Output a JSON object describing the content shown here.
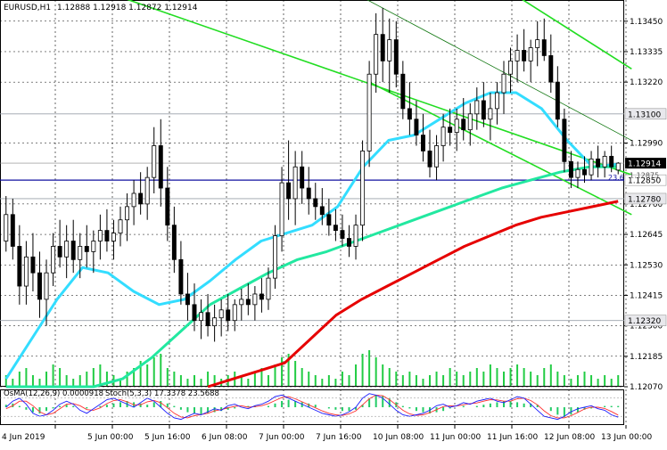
{
  "header": {
    "symbol": "EURUSD,H1",
    "quote": "1.12888 1.12918 1.12872 1.12914"
  },
  "osc_header": {
    "osma": "OsMA(12,26,9) 0.0000918",
    "stoch": "Stoch(5,3,3) 17.3378 23.5688"
  },
  "colors": {
    "background": "#ffffff",
    "grid": "#000000",
    "candle": "#000000",
    "ma_cyan": "#33ddff",
    "ma_green": "#22e8a0",
    "ma_red": "#e60000",
    "trend": "#22dd22",
    "level": "#9aa0aa",
    "blue_line": "#1010a0",
    "volume": "#22cc44",
    "osma": "#22cc66",
    "stoch_main": "#1a1aff",
    "stoch_signal": "#ff3030",
    "price_label_bg": "#000000"
  },
  "chart_data": {
    "type": "candlestick",
    "symbol": "EURUSD",
    "timeframe": "H1",
    "x_labels": [
      "4 Jun 2019",
      "5 Jun 00:00",
      "5 Jun 16:00",
      "6 Jun 08:00",
      "7 Jun 00:00",
      "7 Jun 16:00",
      "10 Jun 08:00",
      "11 Jun 00:00",
      "11 Jun 16:00",
      "12 Jun 08:00",
      "13 Jun 00:00"
    ],
    "y_ticks": [
      "1.13450",
      "1.13335",
      "1.13220",
      "1.12990",
      "1.12760",
      "1.12645",
      "1.12530",
      "1.12415",
      "1.12300",
      "1.12185",
      "1.12070"
    ],
    "ylim": [
      1.1207,
      1.1353
    ],
    "levels": [
      {
        "label": "1.13100",
        "value": 1.131
      },
      {
        "label": "1.12850",
        "value": 1.1285
      },
      {
        "label": "1.12780",
        "value": 1.1278
      },
      {
        "label": "1.12320",
        "value": 1.1232
      }
    ],
    "current_price": {
      "label": "1.12914",
      "value": 1.12914
    },
    "overlap_label": "1.12875",
    "annotation": "23.6",
    "ohlc": [
      [
        1.1262,
        1.1279,
        1.1258,
        1.1272
      ],
      [
        1.1272,
        1.1278,
        1.1255,
        1.126
      ],
      [
        1.126,
        1.1268,
        1.1238,
        1.1245
      ],
      [
        1.1245,
        1.1262,
        1.1238,
        1.1256
      ],
      [
        1.1256,
        1.1265,
        1.1243,
        1.125
      ],
      [
        1.125,
        1.1258,
        1.1233,
        1.124
      ],
      [
        1.124,
        1.1255,
        1.123,
        1.125
      ],
      [
        1.125,
        1.1265,
        1.1245,
        1.126
      ],
      [
        1.126,
        1.127,
        1.1252,
        1.1256
      ],
      [
        1.1256,
        1.1268,
        1.1248,
        1.1262
      ],
      [
        1.1262,
        1.127,
        1.125,
        1.1255
      ],
      [
        1.1255,
        1.1265,
        1.1248,
        1.126
      ],
      [
        1.126,
        1.1268,
        1.1252,
        1.1258
      ],
      [
        1.1258,
        1.1266,
        1.125,
        1.1262
      ],
      [
        1.1262,
        1.1272,
        1.1255,
        1.1266
      ],
      [
        1.1266,
        1.1274,
        1.1258,
        1.1262
      ],
      [
        1.1262,
        1.127,
        1.1255,
        1.1265
      ],
      [
        1.1265,
        1.1275,
        1.126,
        1.127
      ],
      [
        1.127,
        1.128,
        1.1262,
        1.1275
      ],
      [
        1.1275,
        1.1285,
        1.1268,
        1.128
      ],
      [
        1.128,
        1.1288,
        1.1272,
        1.1276
      ],
      [
        1.1276,
        1.129,
        1.127,
        1.1286
      ],
      [
        1.1286,
        1.1305,
        1.128,
        1.1298
      ],
      [
        1.1298,
        1.1308,
        1.1275,
        1.1282
      ],
      [
        1.1282,
        1.129,
        1.1262,
        1.1268
      ],
      [
        1.1268,
        1.1275,
        1.125,
        1.1255
      ],
      [
        1.1255,
        1.1262,
        1.1238,
        1.1242
      ],
      [
        1.1242,
        1.125,
        1.1232,
        1.1238
      ],
      [
        1.1238,
        1.1246,
        1.1228,
        1.1232
      ],
      [
        1.1232,
        1.124,
        1.1225,
        1.1235
      ],
      [
        1.1235,
        1.1242,
        1.1226,
        1.123
      ],
      [
        1.123,
        1.1238,
        1.1224,
        1.1233
      ],
      [
        1.1233,
        1.124,
        1.1226,
        1.1236
      ],
      [
        1.1236,
        1.1242,
        1.1228,
        1.1232
      ],
      [
        1.1232,
        1.124,
        1.1228,
        1.1238
      ],
      [
        1.1238,
        1.1244,
        1.1232,
        1.124
      ],
      [
        1.124,
        1.1246,
        1.1234,
        1.1238
      ],
      [
        1.1238,
        1.1245,
        1.1232,
        1.1242
      ],
      [
        1.1242,
        1.1248,
        1.1235,
        1.124
      ],
      [
        1.124,
        1.1252,
        1.1236,
        1.1248
      ],
      [
        1.1248,
        1.1268,
        1.1244,
        1.1264
      ],
      [
        1.1264,
        1.129,
        1.1258,
        1.1284
      ],
      [
        1.1284,
        1.13,
        1.127,
        1.1278
      ],
      [
        1.1278,
        1.1296,
        1.1268,
        1.129
      ],
      [
        1.129,
        1.1296,
        1.1276,
        1.1282
      ],
      [
        1.1282,
        1.129,
        1.1272,
        1.1278
      ],
      [
        1.1278,
        1.1284,
        1.127,
        1.1275
      ],
      [
        1.1275,
        1.1282,
        1.1268,
        1.1272
      ],
      [
        1.1272,
        1.1278,
        1.1264,
        1.1268
      ],
      [
        1.1268,
        1.1274,
        1.1262,
        1.1266
      ],
      [
        1.1266,
        1.1272,
        1.126,
        1.1263
      ],
      [
        1.1263,
        1.1268,
        1.1256,
        1.126
      ],
      [
        1.126,
        1.1272,
        1.1255,
        1.1268
      ],
      [
        1.1268,
        1.13,
        1.1262,
        1.1296
      ],
      [
        1.1296,
        1.133,
        1.129,
        1.1325
      ],
      [
        1.1325,
        1.1348,
        1.1318,
        1.134
      ],
      [
        1.134,
        1.135,
        1.1322,
        1.133
      ],
      [
        1.133,
        1.1346,
        1.1318,
        1.1338
      ],
      [
        1.1338,
        1.1345,
        1.132,
        1.1325
      ],
      [
        1.1325,
        1.133,
        1.1308,
        1.1312
      ],
      [
        1.1312,
        1.1322,
        1.1302,
        1.1308
      ],
      [
        1.1308,
        1.1315,
        1.1298,
        1.1302
      ],
      [
        1.1302,
        1.131,
        1.1292,
        1.1296
      ],
      [
        1.1296,
        1.1304,
        1.1286,
        1.129
      ],
      [
        1.129,
        1.1302,
        1.1285,
        1.1298
      ],
      [
        1.1298,
        1.131,
        1.1292,
        1.1305
      ],
      [
        1.1305,
        1.1312,
        1.1298,
        1.1303
      ],
      [
        1.1303,
        1.1312,
        1.1296,
        1.1308
      ],
      [
        1.1308,
        1.1316,
        1.13,
        1.1304
      ],
      [
        1.1304,
        1.1314,
        1.1298,
        1.131
      ],
      [
        1.131,
        1.132,
        1.1304,
        1.1315
      ],
      [
        1.1315,
        1.1322,
        1.1305,
        1.1308
      ],
      [
        1.1308,
        1.1318,
        1.13,
        1.1312
      ],
      [
        1.1312,
        1.1322,
        1.1306,
        1.1318
      ],
      [
        1.1318,
        1.133,
        1.131,
        1.1325
      ],
      [
        1.1325,
        1.1335,
        1.1318,
        1.133
      ],
      [
        1.133,
        1.134,
        1.1322,
        1.1334
      ],
      [
        1.1334,
        1.1342,
        1.1326,
        1.133
      ],
      [
        1.133,
        1.1338,
        1.1322,
        1.1335
      ],
      [
        1.1335,
        1.1345,
        1.1328,
        1.1338
      ],
      [
        1.1338,
        1.1346,
        1.133,
        1.1332
      ],
      [
        1.1332,
        1.134,
        1.1318,
        1.1322
      ],
      [
        1.1322,
        1.1328,
        1.1305,
        1.1308
      ],
      [
        1.1308,
        1.1312,
        1.1288,
        1.1292
      ],
      [
        1.1292,
        1.1296,
        1.1282,
        1.1286
      ],
      [
        1.1286,
        1.1292,
        1.1282,
        1.1289
      ],
      [
        1.1289,
        1.1294,
        1.1284,
        1.1287
      ],
      [
        1.1287,
        1.1296,
        1.1285,
        1.1293
      ],
      [
        1.1293,
        1.1298,
        1.1286,
        1.129
      ],
      [
        1.129,
        1.1296,
        1.1286,
        1.1294
      ],
      [
        1.1294,
        1.1298,
        1.1288,
        1.129
      ],
      [
        1.12888,
        1.12918,
        1.12872,
        1.12914
      ]
    ],
    "indicators": [
      {
        "name": "ma_cyan",
        "values": [
          1.121,
          1.1225,
          1.124,
          1.1252,
          1.125,
          1.1243,
          1.1238,
          1.124,
          1.1247,
          1.1255,
          1.1262,
          1.1265,
          1.1268,
          1.1275,
          1.129,
          1.13,
          1.1302,
          1.1308,
          1.1314,
          1.1318,
          1.1318,
          1.1312,
          1.13,
          1.129,
          1.1291
        ]
      },
      {
        "name": "ma_green",
        "values": [
          1.12,
          1.1202,
          1.1203,
          1.1205,
          1.121,
          1.1218,
          1.1228,
          1.1238,
          1.1244,
          1.125,
          1.1255,
          1.1258,
          1.1262,
          1.1266,
          1.127,
          1.1274,
          1.1278,
          1.1282,
          1.1285,
          1.1288,
          1.129,
          1.129
        ]
      },
      {
        "name": "ma_red",
        "values": [
          1.1207,
          1.121,
          1.1213,
          1.1216,
          1.1225,
          1.1234,
          1.124,
          1.1245,
          1.125,
          1.1255,
          1.126,
          1.1264,
          1.1268,
          1.1271,
          1.1273,
          1.1275,
          1.1277
        ]
      }
    ],
    "volume": [
      3,
      2,
      4,
      5,
      3,
      2,
      4,
      6,
      5,
      3,
      2,
      3,
      4,
      5,
      6,
      4,
      3,
      2,
      4,
      5,
      7,
      6,
      8,
      9,
      5,
      4,
      3,
      2,
      3,
      2,
      4,
      3,
      2,
      3,
      4,
      3,
      2,
      4,
      5,
      3,
      6,
      8,
      9,
      7,
      5,
      4,
      3,
      2,
      3,
      2,
      4,
      3,
      6,
      9,
      10,
      8,
      6,
      5,
      4,
      3,
      4,
      3,
      2,
      3,
      4,
      3,
      5,
      4,
      3,
      4,
      5,
      4,
      6,
      5,
      4,
      5,
      6,
      5,
      4,
      3,
      5,
      6,
      4,
      3,
      2,
      3,
      4,
      3,
      2,
      3,
      2,
      3
    ],
    "osma": [
      0.2,
      0.3,
      0.1,
      -0.2,
      -0.4,
      -0.5,
      -0.3,
      -0.1,
      0.1,
      0.2,
      0.1,
      0.0,
      -0.1,
      0.0,
      0.1,
      0.2,
      0.3,
      0.4,
      0.5,
      0.4,
      0.3,
      0.2,
      0.4,
      0.5,
      0.3,
      0.1,
      -0.2,
      -0.4,
      -0.5,
      -0.6,
      -0.5,
      -0.4,
      -0.3,
      -0.2,
      -0.1,
      0.0,
      0.1,
      0.1,
      0.0,
      0.1,
      0.3,
      0.5,
      0.6,
      0.5,
      0.4,
      0.3,
      0.2,
      0.0,
      -0.1,
      -0.2,
      -0.3,
      -0.3,
      -0.2,
      0.2,
      0.7,
      1.0,
      0.9,
      0.7,
      0.4,
      0.1,
      -0.1,
      -0.3,
      -0.4,
      -0.5,
      -0.4,
      -0.3,
      -0.1,
      0.0,
      0.1,
      0.0,
      0.1,
      0.2,
      0.3,
      0.4,
      0.5,
      0.5,
      0.4,
      0.3,
      0.3,
      0.2,
      0.0,
      -0.3,
      -0.6,
      -0.8,
      -0.6,
      -0.4,
      -0.2,
      -0.1,
      0.0,
      0.1,
      0.1,
      0.1
    ],
    "stoch_main": [
      50,
      70,
      80,
      60,
      30,
      20,
      25,
      40,
      60,
      70,
      60,
      40,
      30,
      45,
      60,
      75,
      80,
      70,
      60,
      50,
      65,
      80,
      70,
      50,
      30,
      15,
      10,
      20,
      30,
      25,
      35,
      45,
      40,
      55,
      60,
      50,
      45,
      55,
      60,
      70,
      85,
      90,
      80,
      70,
      60,
      50,
      40,
      30,
      25,
      20,
      25,
      35,
      50,
      80,
      95,
      90,
      80,
      60,
      40,
      25,
      20,
      25,
      30,
      40,
      55,
      60,
      50,
      55,
      65,
      60,
      70,
      75,
      80,
      70,
      65,
      75,
      85,
      80,
      60,
      40,
      20,
      15,
      10,
      20,
      35,
      45,
      50,
      55,
      45,
      40,
      25,
      17
    ],
    "stoch_signal": [
      45,
      55,
      70,
      70,
      55,
      35,
      25,
      30,
      45,
      60,
      62,
      55,
      42,
      40,
      48,
      62,
      72,
      75,
      68,
      58,
      58,
      68,
      72,
      65,
      48,
      30,
      18,
      15,
      22,
      26,
      30,
      38,
      42,
      48,
      53,
      55,
      50,
      52,
      55,
      62,
      72,
      82,
      85,
      78,
      68,
      58,
      48,
      38,
      30,
      25,
      23,
      28,
      38,
      58,
      78,
      90,
      88,
      75,
      58,
      40,
      28,
      23,
      25,
      32,
      42,
      52,
      55,
      54,
      58,
      62,
      64,
      70,
      75,
      74,
      70,
      70,
      78,
      80,
      72,
      58,
      38,
      22,
      15,
      15,
      22,
      33,
      44,
      50,
      50,
      46,
      36,
      24
    ]
  }
}
